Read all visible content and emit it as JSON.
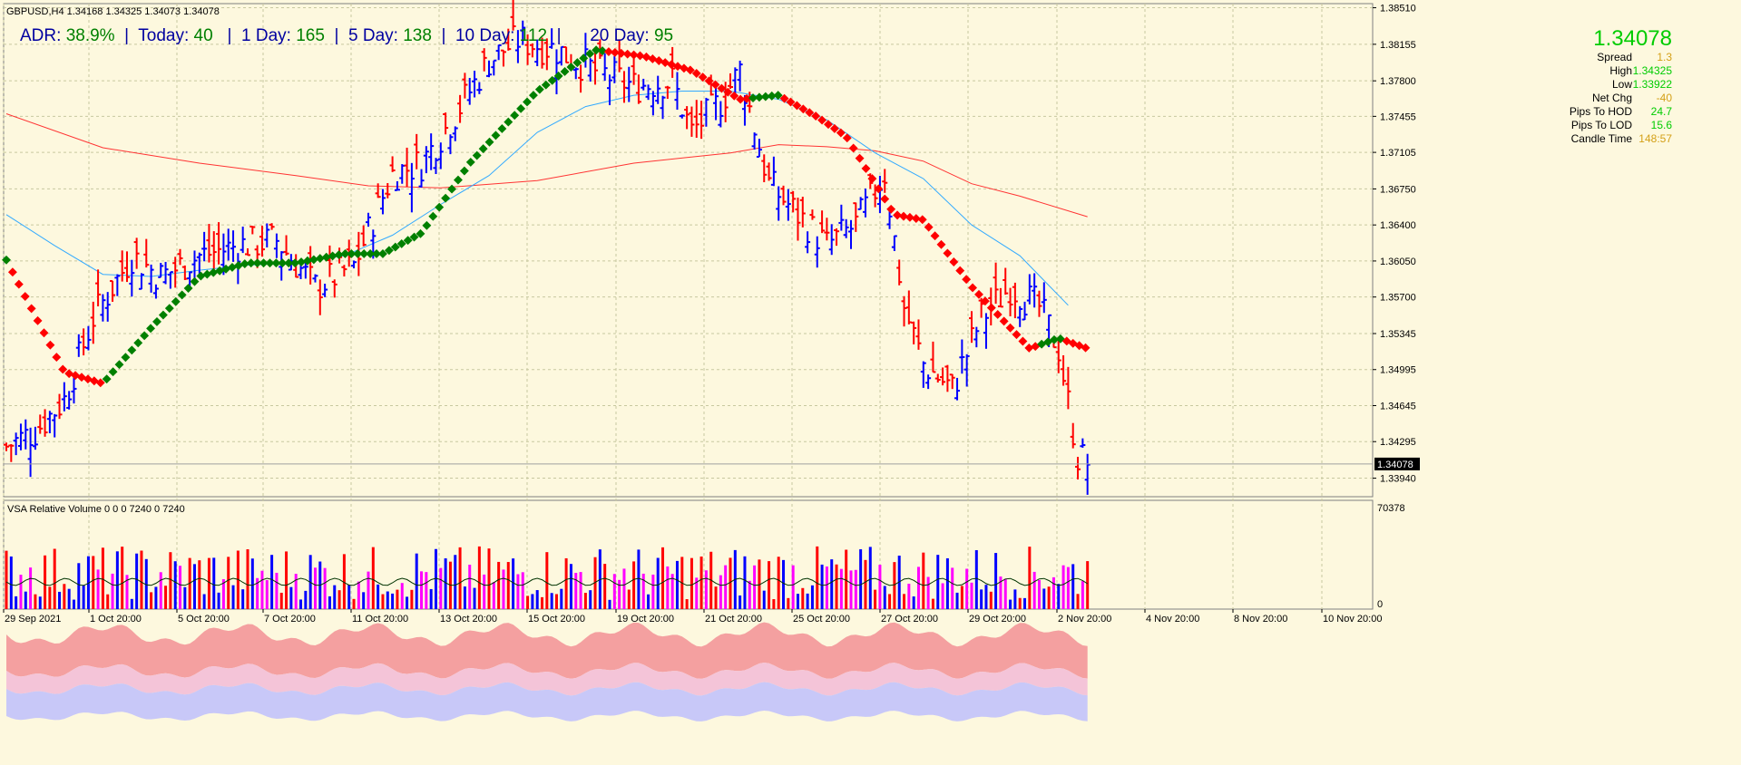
{
  "header": {
    "symbol_line": "GBPUSD,H4  1.34168 1.34325 1.34073 1.34078"
  },
  "adr": {
    "adr_label": "ADR:",
    "adr_value": "38.9%",
    "today_label": "Today:",
    "today_value": "40",
    "day1_label": "1 Day:",
    "day1_value": "165",
    "day5_label": "5 Day:",
    "day5_value": "138",
    "day10_label": "10 Day:",
    "day10_value": "112",
    "day20_label": "20 Day:",
    "day20_value": "95"
  },
  "stats": {
    "price": "1.34078",
    "rows": [
      {
        "label": "Spread",
        "value": "1.3",
        "color": "#d4a017"
      },
      {
        "label": "High",
        "value": "1.34325",
        "color": "#00cc00"
      },
      {
        "label": "Low",
        "value": "1.33922",
        "color": "#00cc00"
      },
      {
        "label": "Net Chg",
        "value": "-40",
        "color": "#d4a017"
      },
      {
        "label": "Pips To HOD",
        "value": "24.7",
        "color": "#00cc00"
      },
      {
        "label": "Pips To LOD",
        "value": "15.6",
        "color": "#00cc00"
      },
      {
        "label": "Candle Time",
        "value": "148:57",
        "color": "#d4a017"
      }
    ]
  },
  "colors": {
    "background": "#fdf8de",
    "grid": "#c8c8a0",
    "bull": "#0000ff",
    "bear": "#ff0000",
    "ma_fast": "#33aaff",
    "ma_slow": "#ff3333",
    "trend_up": "#008000",
    "trend_down": "#ff0000",
    "vol_red_band": "#f4a0a0",
    "vol_pink_band": "#f4c4d8",
    "vol_violet_band": "#c8c8f8",
    "vol_magenta": "#ff00ff"
  },
  "vsa": {
    "label": "VSA Relative Volume 0 0 0 7240 0 7240",
    "axis_top": "70378",
    "axis_bottom": "0"
  },
  "chart_data": {
    "type": "candlestick",
    "symbol": "GBPUSD",
    "timeframe": "H4",
    "ohlc_last": {
      "open": 1.34168,
      "high": 1.34325,
      "low": 1.34073,
      "close": 1.34078
    },
    "ylim": [
      1.3376,
      1.3855
    ],
    "y_ticks": [
      "1.38510",
      "1.38155",
      "1.37800",
      "1.37455",
      "1.37105",
      "1.36750",
      "1.36400",
      "1.36050",
      "1.35700",
      "1.35345",
      "1.34995",
      "1.34645",
      "1.34295",
      "1.33940"
    ],
    "current_price_label": "1.34078",
    "x_labels": [
      "29 Sep 2021",
      "1 Oct 20:00",
      "5 Oct 20:00",
      "7 Oct 20:00",
      "11 Oct 20:00",
      "13 Oct 20:00",
      "15 Oct 20:00",
      "19 Oct 20:00",
      "21 Oct 20:00",
      "25 Oct 20:00",
      "27 Oct 20:00",
      "29 Oct 20:00",
      "2 Nov 20:00",
      "4 Nov 20:00",
      "8 Nov 20:00",
      "10 Nov 20:00"
    ],
    "trend_points": [
      [
        0,
        1.3606
      ],
      [
        12,
        1.3497
      ],
      [
        20,
        1.3486
      ],
      [
        30,
        1.354
      ],
      [
        40,
        1.359
      ],
      [
        50,
        1.3603
      ],
      [
        60,
        1.3603
      ],
      [
        70,
        1.3612
      ],
      [
        78,
        1.3612
      ],
      [
        86,
        1.3632
      ],
      [
        96,
        1.37
      ],
      [
        110,
        1.377
      ],
      [
        122,
        1.381
      ],
      [
        132,
        1.3804
      ],
      [
        142,
        1.379
      ],
      [
        152,
        1.3762
      ],
      [
        160,
        1.3766
      ],
      [
        168,
        1.3745
      ],
      [
        174,
        1.3726
      ],
      [
        184,
        1.365
      ],
      [
        190,
        1.3645
      ],
      [
        200,
        1.358
      ],
      [
        212,
        1.352
      ],
      [
        218,
        1.353
      ],
      [
        224,
        1.352
      ]
    ],
    "ma_fast": [
      [
        0,
        1.365
      ],
      [
        10,
        1.362
      ],
      [
        20,
        1.3592
      ],
      [
        30,
        1.359
      ],
      [
        40,
        1.3596
      ],
      [
        50,
        1.3601
      ],
      [
        60,
        1.3603
      ],
      [
        70,
        1.361
      ],
      [
        80,
        1.363
      ],
      [
        90,
        1.366
      ],
      [
        100,
        1.3688
      ],
      [
        110,
        1.373
      ],
      [
        120,
        1.3755
      ],
      [
        130,
        1.3766
      ],
      [
        140,
        1.377
      ],
      [
        150,
        1.377
      ],
      [
        160,
        1.3762
      ],
      [
        170,
        1.3742
      ],
      [
        180,
        1.371
      ],
      [
        190,
        1.3685
      ],
      [
        200,
        1.364
      ],
      [
        210,
        1.361
      ],
      [
        220,
        1.3562
      ]
    ],
    "ma_slow": [
      [
        0,
        1.3748
      ],
      [
        20,
        1.3715
      ],
      [
        40,
        1.37
      ],
      [
        60,
        1.3688
      ],
      [
        75,
        1.3678
      ],
      [
        90,
        1.3676
      ],
      [
        110,
        1.3683
      ],
      [
        130,
        1.37
      ],
      [
        150,
        1.371
      ],
      [
        160,
        1.3718
      ],
      [
        170,
        1.3716
      ],
      [
        180,
        1.3712
      ],
      [
        190,
        1.3702
      ],
      [
        200,
        1.368
      ],
      [
        210,
        1.3668
      ],
      [
        224,
        1.3648
      ]
    ],
    "volume_type": "vsa_relative_volume"
  }
}
